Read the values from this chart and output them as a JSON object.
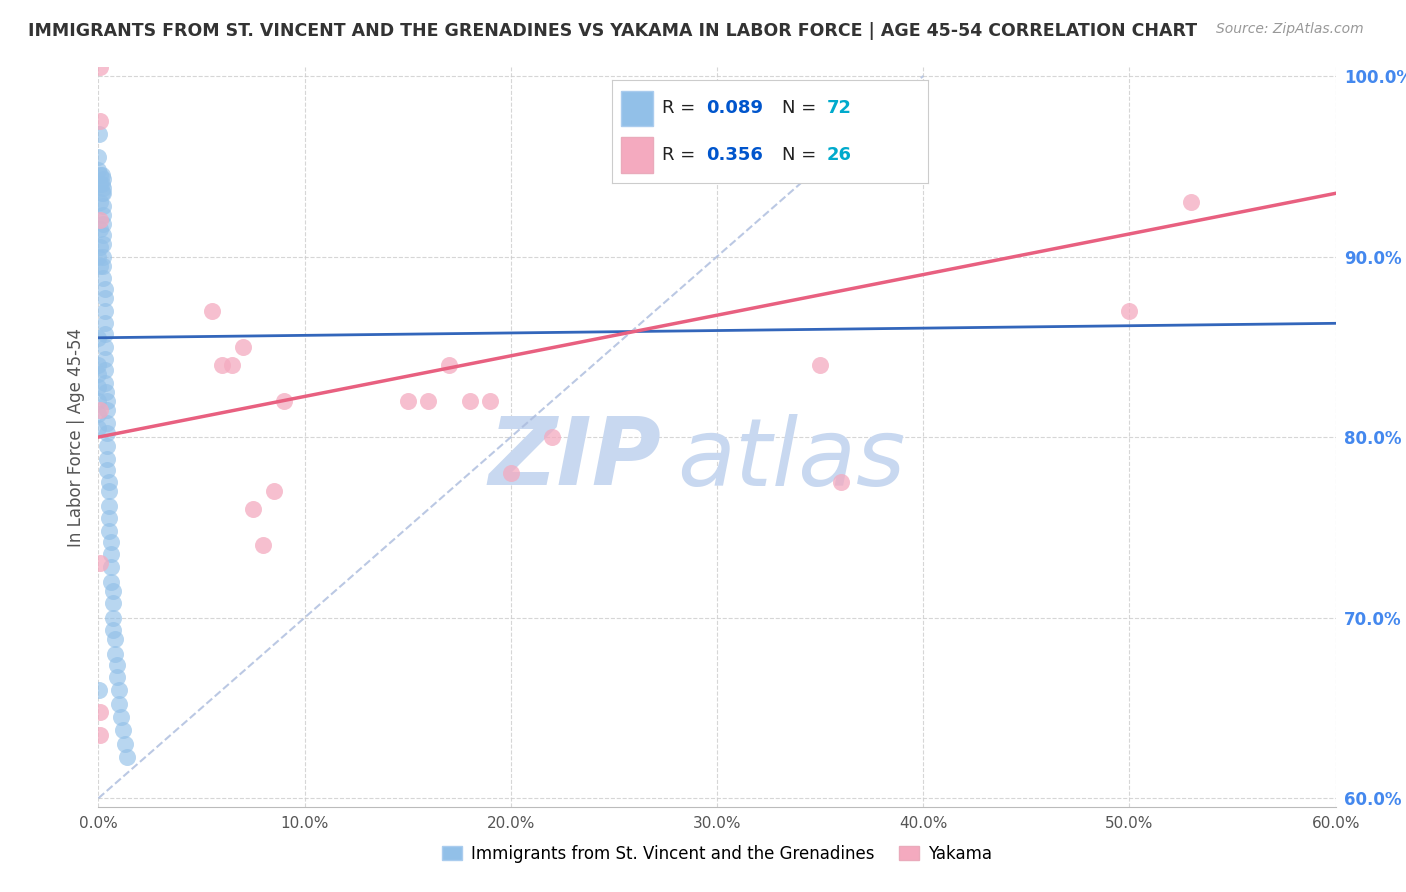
{
  "title": "IMMIGRANTS FROM ST. VINCENT AND THE GRENADINES VS YAKAMA IN LABOR FORCE | AGE 45-54 CORRELATION CHART",
  "source": "Source: ZipAtlas.com",
  "ylabel": "In Labor Force | Age 45-54",
  "blue_label": "Immigrants from St. Vincent and the Grenadines",
  "pink_label": "Yakama",
  "blue_R": 0.089,
  "blue_N": 72,
  "pink_R": 0.356,
  "pink_N": 26,
  "xlim": [
    0.0,
    0.6
  ],
  "ylim": [
    0.595,
    1.005
  ],
  "xticks": [
    0.0,
    0.1,
    0.2,
    0.3,
    0.4,
    0.5,
    0.6
  ],
  "yticks": [
    0.6,
    0.7,
    0.8,
    0.9,
    1.0
  ],
  "xticklabels": [
    "0.0%",
    "10.0%",
    "20.0%",
    "30.0%",
    "40.0%",
    "50.0%",
    "60.0%"
  ],
  "yticklabels": [
    "60.0%",
    "70.0%",
    "80.0%",
    "90.0%",
    "100.0%"
  ],
  "blue_color": "#92C0E8",
  "pink_color": "#F4AABF",
  "blue_line_color": "#3366BB",
  "pink_line_color": "#E86080",
  "blue_scatter_x": [
    0.0005,
    0.0005,
    0.001,
    0.001,
    0.001,
    0.001,
    0.001,
    0.001,
    0.0015,
    0.0015,
    0.0015,
    0.002,
    0.002,
    0.002,
    0.002,
    0.002,
    0.002,
    0.002,
    0.002,
    0.002,
    0.002,
    0.002,
    0.003,
    0.003,
    0.003,
    0.003,
    0.003,
    0.003,
    0.003,
    0.003,
    0.003,
    0.0035,
    0.004,
    0.004,
    0.004,
    0.004,
    0.004,
    0.004,
    0.004,
    0.005,
    0.005,
    0.005,
    0.005,
    0.005,
    0.006,
    0.006,
    0.006,
    0.006,
    0.007,
    0.007,
    0.007,
    0.007,
    0.008,
    0.008,
    0.009,
    0.009,
    0.01,
    0.01,
    0.011,
    0.012,
    0.013,
    0.014,
    0.0,
    0.0,
    0.0,
    0.0,
    0.0,
    0.0,
    0.0,
    0.0,
    0.0,
    0.0
  ],
  "blue_scatter_y": [
    0.968,
    0.66,
    0.945,
    0.94,
    0.93,
    0.915,
    0.905,
    0.895,
    0.945,
    0.94,
    0.935,
    0.943,
    0.938,
    0.935,
    0.928,
    0.923,
    0.918,
    0.912,
    0.907,
    0.9,
    0.895,
    0.888,
    0.882,
    0.877,
    0.87,
    0.863,
    0.857,
    0.85,
    0.843,
    0.837,
    0.83,
    0.825,
    0.82,
    0.815,
    0.808,
    0.802,
    0.795,
    0.788,
    0.782,
    0.775,
    0.77,
    0.762,
    0.755,
    0.748,
    0.742,
    0.735,
    0.728,
    0.72,
    0.715,
    0.708,
    0.7,
    0.693,
    0.688,
    0.68,
    0.674,
    0.667,
    0.66,
    0.652,
    0.645,
    0.638,
    0.63,
    0.623,
    0.955,
    0.948,
    0.9,
    0.855,
    0.84,
    0.835,
    0.828,
    0.82,
    0.813,
    0.805
  ],
  "pink_scatter_x": [
    0.001,
    0.001,
    0.001,
    0.001,
    0.001,
    0.001,
    0.055,
    0.06,
    0.065,
    0.07,
    0.075,
    0.08,
    0.085,
    0.09,
    0.15,
    0.16,
    0.17,
    0.18,
    0.19,
    0.2,
    0.22,
    0.35,
    0.36,
    0.5,
    0.53,
    0.001
  ],
  "pink_scatter_y": [
    1.005,
    0.975,
    0.92,
    0.815,
    0.73,
    0.648,
    0.87,
    0.84,
    0.84,
    0.85,
    0.76,
    0.74,
    0.77,
    0.82,
    0.82,
    0.82,
    0.84,
    0.82,
    0.82,
    0.78,
    0.8,
    0.84,
    0.775,
    0.87,
    0.93,
    0.635
  ],
  "blue_trendline": [
    0.0,
    0.6,
    0.855,
    0.863
  ],
  "pink_trendline": [
    0.0,
    0.6,
    0.8,
    0.935
  ],
  "diag_line_x": [
    0.0,
    0.4
  ],
  "diag_line_y": [
    0.6,
    1.0
  ],
  "watermark_zip": "ZIP",
  "watermark_atlas": "atlas",
  "watermark_color": "#C8D8F0",
  "background_color": "#FFFFFF",
  "grid_color": "#CCCCCC",
  "title_color": "#333333",
  "axis_label_color": "#555555",
  "ytick_color": "#4488EE",
  "xtick_color": "#555555",
  "legend_R_color": "#0055CC",
  "legend_N_color": "#00AACC"
}
